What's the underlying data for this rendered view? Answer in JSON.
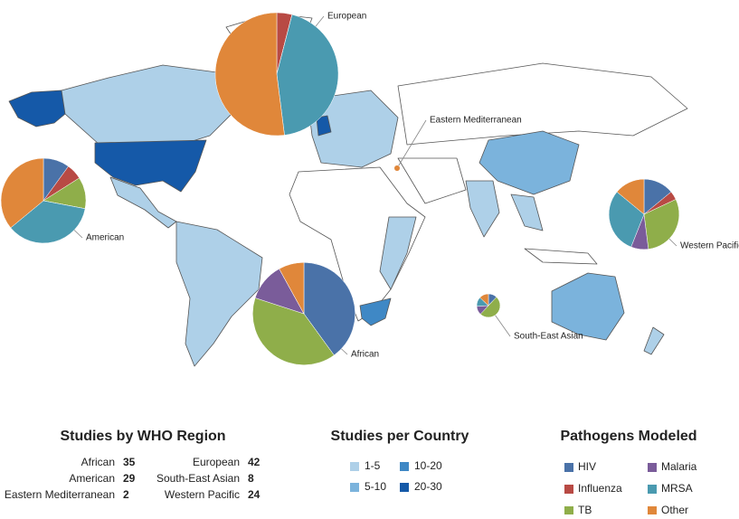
{
  "legends": {
    "regions": {
      "title": "Studies by WHO Region",
      "items": [
        {
          "name": "African",
          "count": 35,
          "pathogens": [
            40,
            0,
            40,
            12,
            0,
            8
          ]
        },
        {
          "name": "American",
          "count": 29,
          "pathogens": [
            10,
            6,
            12,
            0,
            36,
            36
          ]
        },
        {
          "name": "Eastern Mediterranean",
          "count": 2,
          "pathogens": [
            0,
            0,
            0,
            0,
            0,
            100
          ]
        },
        {
          "name": "European",
          "count": 42,
          "pathogens": [
            0,
            4,
            0,
            0,
            44,
            52
          ]
        },
        {
          "name": "South-East Asian",
          "count": 8,
          "pathogens": [
            12,
            0,
            50,
            12,
            13,
            13
          ]
        },
        {
          "name": "Western Pacific",
          "count": 24,
          "pathogens": [
            14,
            4,
            30,
            8,
            30,
            14
          ]
        }
      ]
    },
    "countries": {
      "title": "Studies per Country",
      "items": [
        {
          "label": "1-5",
          "color": "#aed0e8"
        },
        {
          "label": "5-10",
          "color": "#7bb3dc"
        },
        {
          "label": "10-20",
          "color": "#3f88c5"
        },
        {
          "label": "20-30",
          "color": "#1559a8"
        }
      ]
    },
    "pathogens": {
      "title": "Pathogens Modeled",
      "items": [
        {
          "name": "HIV",
          "color": "#4a72a8"
        },
        {
          "name": "Influenza",
          "color": "#b84a44"
        },
        {
          "name": "TB",
          "color": "#8fae4a"
        },
        {
          "name": "Malaria",
          "color": "#7a5c9a"
        },
        {
          "name": "MRSA",
          "color": "#4a9ab0"
        },
        {
          "name": "Other",
          "color": "#e0873a"
        }
      ]
    }
  }
}
